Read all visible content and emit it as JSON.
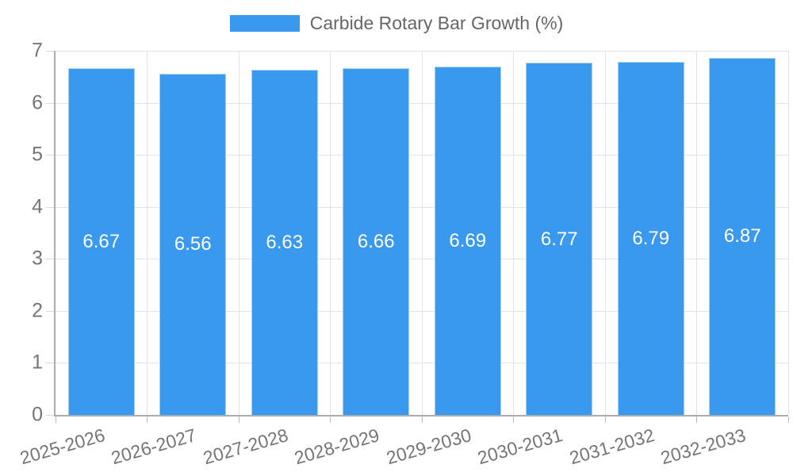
{
  "legend": {
    "label": "Carbide Rotary Bar Growth (%)"
  },
  "chart_data": {
    "type": "bar",
    "title": "",
    "legend_entries": [
      "Carbide Rotary Bar Growth (%)"
    ],
    "legend_position": "top",
    "categories": [
      "2025-2026",
      "2026-2027",
      "2027-2028",
      "2028-2029",
      "2029-2030",
      "2030-2031",
      "2031-2032",
      "2032-2033"
    ],
    "values": [
      6.67,
      6.56,
      6.63,
      6.66,
      6.69,
      6.77,
      6.79,
      6.87
    ],
    "value_labels": [
      "6.67",
      "6.56",
      "6.63",
      "6.66",
      "6.69",
      "6.77",
      "6.79",
      "6.87"
    ],
    "xlabel": "",
    "ylabel": "",
    "ylim": [
      0,
      7
    ],
    "yticks": [
      0,
      1,
      2,
      3,
      4,
      5,
      6,
      7
    ],
    "grid": true
  },
  "colors": {
    "bar": "#3999EE",
    "bar_border": "#A6CFF5",
    "grid": "#E3E3E3",
    "axis": "#ACACAC",
    "y_tick_mark": "#D9D9D9",
    "x_tick_mark": "#BDBDBD",
    "tick_text": "#757575",
    "legend_text": "#666666",
    "value_label_text": "#FFFFFF",
    "background": "#FFFFFF"
  }
}
